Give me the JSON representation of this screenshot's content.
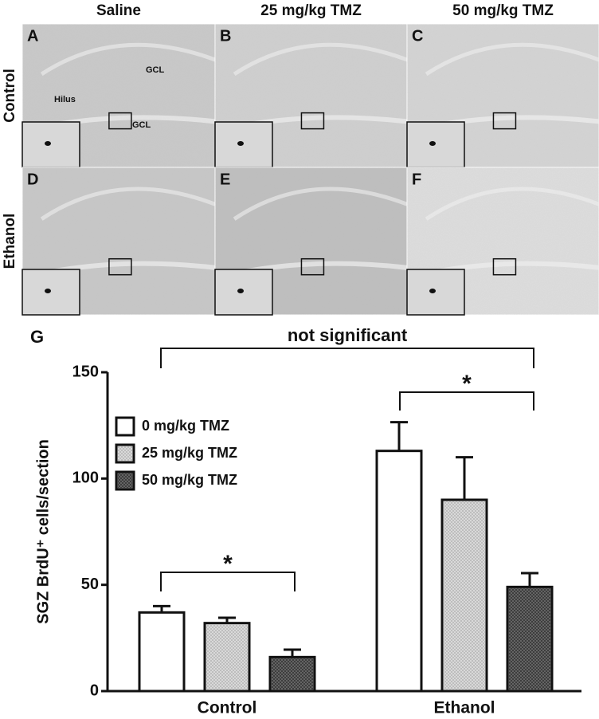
{
  "column_headers": [
    "Saline",
    "25 mg/kg TMZ",
    "50 mg/kg TMZ"
  ],
  "row_labels": [
    "Control",
    "Ethanol"
  ],
  "panels": [
    {
      "letter": "A",
      "labels": [
        "GCL",
        "Hilus",
        "GCL"
      ]
    },
    {
      "letter": "B"
    },
    {
      "letter": "C"
    },
    {
      "letter": "D"
    },
    {
      "letter": "E"
    },
    {
      "letter": "F"
    }
  ],
  "figure_label": "G",
  "chart_data": {
    "type": "bar",
    "ylabel": "SGZ BrdU⁺ cells/section",
    "categories": [
      "Control",
      "Ethanol"
    ],
    "series": [
      {
        "name": "0 mg/kg TMZ",
        "color": "#ffffff",
        "values": [
          37,
          113
        ],
        "errors": [
          3,
          13.5
        ]
      },
      {
        "name": "25 mg/kg TMZ",
        "color": "#d9d9d9",
        "values": [
          32,
          90
        ],
        "errors": [
          2.5,
          20
        ]
      },
      {
        "name": "50 mg/kg TMZ",
        "color": "#6e6e6e",
        "values": [
          16,
          49
        ],
        "errors": [
          3.5,
          6.5
        ]
      }
    ],
    "ylim": [
      0,
      150
    ],
    "yticks": [
      0,
      50,
      100,
      150
    ],
    "annotations": [
      "not significant",
      "*",
      "*"
    ]
  }
}
